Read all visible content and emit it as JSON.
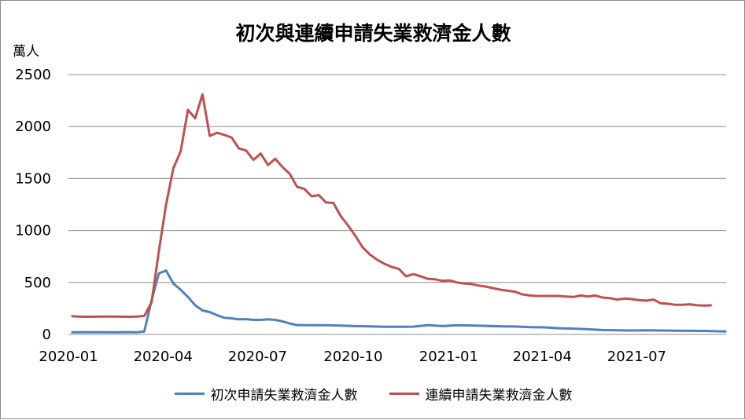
{
  "chart_data": {
    "type": "line",
    "title": "初次與連續申請失業救濟金人數",
    "ylabel": "萬人",
    "xlabel": "",
    "ylim": [
      0,
      2500
    ],
    "yticks": [
      0,
      500,
      1000,
      1500,
      2000,
      2500
    ],
    "grid": true,
    "legend_position": "bottom",
    "x_tick_labels": [
      "2020-01",
      "2020-04",
      "2020-07",
      "2020-10",
      "2021-01",
      "2021-04",
      "2021-07"
    ],
    "x_tick_dates": [
      "2020-01-01",
      "2020-04-01",
      "2020-07-01",
      "2020-10-01",
      "2021-01-01",
      "2021-04-01",
      "2021-07-01"
    ],
    "x_start": "2020-01-01",
    "x_end": "2021-09-25",
    "series": [
      {
        "name": "初次申請失業救濟金人數",
        "color": "#4f81bd",
        "points": [
          [
            "2020-01-04",
            21
          ],
          [
            "2020-01-18",
            22
          ],
          [
            "2020-02-01",
            22
          ],
          [
            "2020-02-15",
            21
          ],
          [
            "2020-02-29",
            22
          ],
          [
            "2020-03-07",
            21
          ],
          [
            "2020-03-14",
            28
          ],
          [
            "2020-03-21",
            329
          ],
          [
            "2020-03-28",
            587
          ],
          [
            "2020-04-04",
            615
          ],
          [
            "2020-04-11",
            490
          ],
          [
            "2020-04-18",
            430
          ],
          [
            "2020-04-25",
            360
          ],
          [
            "2020-05-02",
            280
          ],
          [
            "2020-05-09",
            230
          ],
          [
            "2020-05-16",
            215
          ],
          [
            "2020-05-23",
            185
          ],
          [
            "2020-05-30",
            160
          ],
          [
            "2020-06-06",
            155
          ],
          [
            "2020-06-13",
            145
          ],
          [
            "2020-06-20",
            147
          ],
          [
            "2020-06-27",
            140
          ],
          [
            "2020-07-04",
            140
          ],
          [
            "2020-07-11",
            145
          ],
          [
            "2020-07-18",
            140
          ],
          [
            "2020-07-25",
            125
          ],
          [
            "2020-08-01",
            105
          ],
          [
            "2020-08-08",
            90
          ],
          [
            "2020-08-22",
            88
          ],
          [
            "2020-09-05",
            88
          ],
          [
            "2020-09-19",
            85
          ],
          [
            "2020-10-03",
            80
          ],
          [
            "2020-10-17",
            78
          ],
          [
            "2020-10-31",
            74
          ],
          [
            "2020-11-14",
            74
          ],
          [
            "2020-11-28",
            75
          ],
          [
            "2020-12-12",
            90
          ],
          [
            "2020-12-26",
            80
          ],
          [
            "2021-01-09",
            88
          ],
          [
            "2021-01-23",
            86
          ],
          [
            "2021-02-06",
            82
          ],
          [
            "2021-02-20",
            78
          ],
          [
            "2021-03-06",
            76
          ],
          [
            "2021-03-20",
            70
          ],
          [
            "2021-04-03",
            68
          ],
          [
            "2021-04-17",
            60
          ],
          [
            "2021-05-01",
            56
          ],
          [
            "2021-05-15",
            50
          ],
          [
            "2021-05-29",
            42
          ],
          [
            "2021-06-12",
            40
          ],
          [
            "2021-06-26",
            38
          ],
          [
            "2021-07-10",
            40
          ],
          [
            "2021-07-24",
            38
          ],
          [
            "2021-08-07",
            36
          ],
          [
            "2021-08-21",
            35
          ],
          [
            "2021-09-04",
            34
          ],
          [
            "2021-09-18",
            30
          ],
          [
            "2021-09-25",
            28
          ]
        ]
      },
      {
        "name": "連續申請失業救濟金人數",
        "color": "#c0504d",
        "points": [
          [
            "2020-01-04",
            175
          ],
          [
            "2020-01-11",
            172
          ],
          [
            "2020-01-18",
            170
          ],
          [
            "2020-02-01",
            172
          ],
          [
            "2020-02-15",
            172
          ],
          [
            "2020-02-29",
            170
          ],
          [
            "2020-03-07",
            172
          ],
          [
            "2020-03-14",
            178
          ],
          [
            "2020-03-21",
            310
          ],
          [
            "2020-03-28",
            800
          ],
          [
            "2020-04-04",
            1250
          ],
          [
            "2020-04-11",
            1600
          ],
          [
            "2020-04-18",
            1760
          ],
          [
            "2020-04-25",
            2160
          ],
          [
            "2020-05-02",
            2080
          ],
          [
            "2020-05-09",
            2310
          ],
          [
            "2020-05-16",
            1910
          ],
          [
            "2020-05-23",
            1940
          ],
          [
            "2020-05-30",
            1920
          ],
          [
            "2020-06-06",
            1895
          ],
          [
            "2020-06-13",
            1790
          ],
          [
            "2020-06-20",
            1770
          ],
          [
            "2020-06-27",
            1680
          ],
          [
            "2020-07-04",
            1740
          ],
          [
            "2020-07-11",
            1630
          ],
          [
            "2020-07-18",
            1690
          ],
          [
            "2020-07-25",
            1610
          ],
          [
            "2020-08-01",
            1545
          ],
          [
            "2020-08-08",
            1420
          ],
          [
            "2020-08-15",
            1400
          ],
          [
            "2020-08-22",
            1330
          ],
          [
            "2020-08-29",
            1340
          ],
          [
            "2020-09-05",
            1270
          ],
          [
            "2020-09-12",
            1265
          ],
          [
            "2020-09-19",
            1140
          ],
          [
            "2020-09-26",
            1050
          ],
          [
            "2020-10-03",
            950
          ],
          [
            "2020-10-10",
            840
          ],
          [
            "2020-10-17",
            770
          ],
          [
            "2020-10-24",
            720
          ],
          [
            "2020-10-31",
            680
          ],
          [
            "2020-11-07",
            650
          ],
          [
            "2020-11-14",
            630
          ],
          [
            "2020-11-21",
            560
          ],
          [
            "2020-11-28",
            580
          ],
          [
            "2020-12-05",
            560
          ],
          [
            "2020-12-12",
            535
          ],
          [
            "2020-12-19",
            530
          ],
          [
            "2020-12-26",
            515
          ],
          [
            "2021-01-02",
            520
          ],
          [
            "2021-01-09",
            500
          ],
          [
            "2021-01-16",
            490
          ],
          [
            "2021-01-23",
            485
          ],
          [
            "2021-01-30",
            470
          ],
          [
            "2021-02-06",
            460
          ],
          [
            "2021-02-13",
            445
          ],
          [
            "2021-02-20",
            430
          ],
          [
            "2021-02-27",
            420
          ],
          [
            "2021-03-06",
            410
          ],
          [
            "2021-03-13",
            385
          ],
          [
            "2021-03-20",
            375
          ],
          [
            "2021-03-27",
            370
          ],
          [
            "2021-04-03",
            370
          ],
          [
            "2021-04-17",
            370
          ],
          [
            "2021-04-24",
            365
          ],
          [
            "2021-05-01",
            360
          ],
          [
            "2021-05-08",
            375
          ],
          [
            "2021-05-15",
            365
          ],
          [
            "2021-05-22",
            375
          ],
          [
            "2021-05-29",
            355
          ],
          [
            "2021-06-05",
            350
          ],
          [
            "2021-06-12",
            335
          ],
          [
            "2021-06-19",
            345
          ],
          [
            "2021-06-26",
            340
          ],
          [
            "2021-07-03",
            330
          ],
          [
            "2021-07-10",
            325
          ],
          [
            "2021-07-17",
            335
          ],
          [
            "2021-07-24",
            300
          ],
          [
            "2021-07-31",
            295
          ],
          [
            "2021-08-07",
            285
          ],
          [
            "2021-08-14",
            285
          ],
          [
            "2021-08-21",
            290
          ],
          [
            "2021-08-28",
            280
          ],
          [
            "2021-09-04",
            278
          ],
          [
            "2021-09-11",
            280
          ]
        ]
      }
    ]
  }
}
